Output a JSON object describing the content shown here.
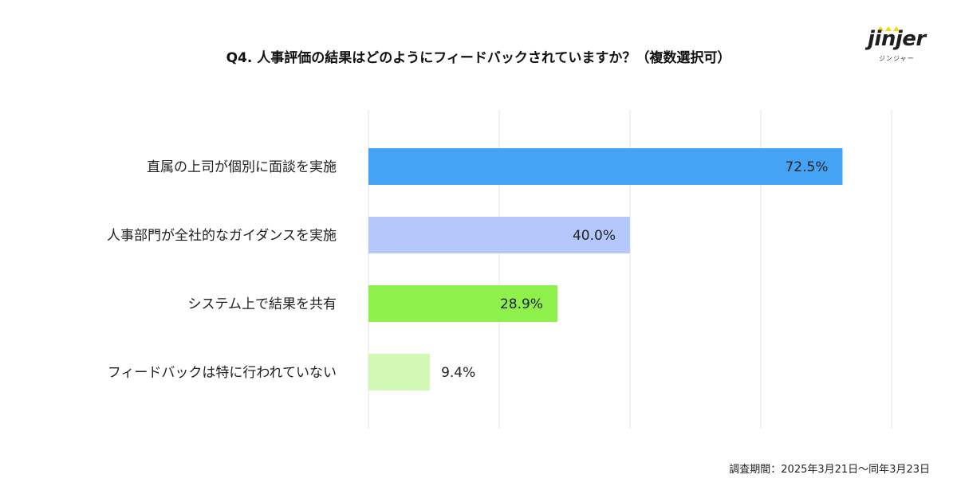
{
  "title": "Q4. 人事評価の結果はどのようにフィードバックされていますか？（複数選択可）",
  "logo": {
    "word": "jinjer",
    "sub": "ジンジャー"
  },
  "footer": "調査期間：2025年3月21日〜同年3月23日",
  "colors": {
    "bar1": "#45a3f5",
    "bar2": "#b4c8fc",
    "bar3": "#8ef04a",
    "bar4": "#d2f8b6",
    "grid": "#e3e3e3",
    "logo_accent": "#f5d800"
  },
  "chart_data": {
    "type": "bar",
    "orientation": "horizontal",
    "categories": [
      "直属の上司が個別に面談を実施",
      "人事部門が全社的なガイダンスを実施",
      "システム上で結果を共有",
      "フィードバックは特に行われていない"
    ],
    "values": [
      72.5,
      40.0,
      28.9,
      9.4
    ],
    "value_labels": [
      "72.5%",
      "40.0%",
      "28.9%",
      "9.4%"
    ],
    "bar_colors": [
      "#45a3f5",
      "#b4c8fc",
      "#8ef04a",
      "#d2f8b6"
    ],
    "xlim": [
      0,
      80
    ],
    "grid": true
  }
}
